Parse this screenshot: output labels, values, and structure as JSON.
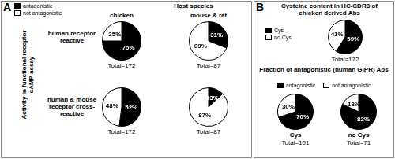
{
  "panels": [
    {
      "label": "A",
      "header": "Host species",
      "columns": [
        "chicken",
        "mouse & rat"
      ],
      "rows": [
        "human receptor reactive",
        "human & mouse receptor cross-reactive"
      ],
      "side_label": "Activity in functional receptor cAMP assay"
    },
    {
      "label": "B",
      "title": "Cysteine content in HC-CDR3 of chicken derived Abs",
      "subtitle": "Fraction of antagonistic (human GIPR) Abs"
    }
  ],
  "chart_data": [
    {
      "type": "pie",
      "categories": [
        "antagonistic",
        "not antagonistic"
      ],
      "values": [
        75,
        25
      ],
      "value_labels": [
        "75%",
        "25%"
      ],
      "colors": [
        "#000000",
        "#ffffff"
      ],
      "data_labels": true,
      "annotations": [
        "Total=172"
      ],
      "legend": "top-left"
    },
    {
      "type": "pie",
      "categories": [
        "antagonistic",
        "not antagonistic"
      ],
      "values": [
        31,
        69
      ],
      "value_labels": [
        "31%",
        "69%"
      ],
      "colors": [
        "#000000",
        "#ffffff"
      ],
      "data_labels": true,
      "annotations": [
        "Total=87"
      ]
    },
    {
      "type": "pie",
      "categories": [
        "antagonistic",
        "not antagonistic"
      ],
      "values": [
        52,
        48
      ],
      "value_labels": [
        "52%",
        "48%"
      ],
      "colors": [
        "#000000",
        "#ffffff"
      ],
      "data_labels": true,
      "annotations": [
        "Total=172"
      ]
    },
    {
      "type": "pie",
      "categories": [
        "antagonistic",
        "not antagonistic"
      ],
      "values": [
        13,
        87
      ],
      "value_labels": [
        "13%",
        "87%"
      ],
      "colors": [
        "#000000",
        "#ffffff"
      ],
      "data_labels": true,
      "annotations": [
        "Total=87"
      ]
    },
    {
      "type": "pie",
      "categories": [
        "Cys",
        "no Cys"
      ],
      "values": [
        59,
        41
      ],
      "value_labels": [
        "59%",
        "41%"
      ],
      "colors": [
        "#000000",
        "#ffffff"
      ],
      "data_labels": true,
      "annotations": [
        "Total=172"
      ],
      "legend": "left"
    },
    {
      "type": "pie",
      "title": "Cys",
      "categories": [
        "antagonistic",
        "not antagonistic"
      ],
      "values": [
        70,
        30
      ],
      "value_labels": [
        "70%",
        "30%"
      ],
      "colors": [
        "#000000",
        "#ffffff"
      ],
      "data_labels": true,
      "annotations": [
        "Total=101"
      ],
      "legend": "top"
    },
    {
      "type": "pie",
      "title": "no Cys",
      "categories": [
        "antagonistic",
        "not antagonistic"
      ],
      "values": [
        82,
        18
      ],
      "value_labels": [
        "82%",
        "18%"
      ],
      "colors": [
        "#000000",
        "#ffffff"
      ],
      "data_labels": true,
      "annotations": [
        "Total=71"
      ]
    }
  ]
}
